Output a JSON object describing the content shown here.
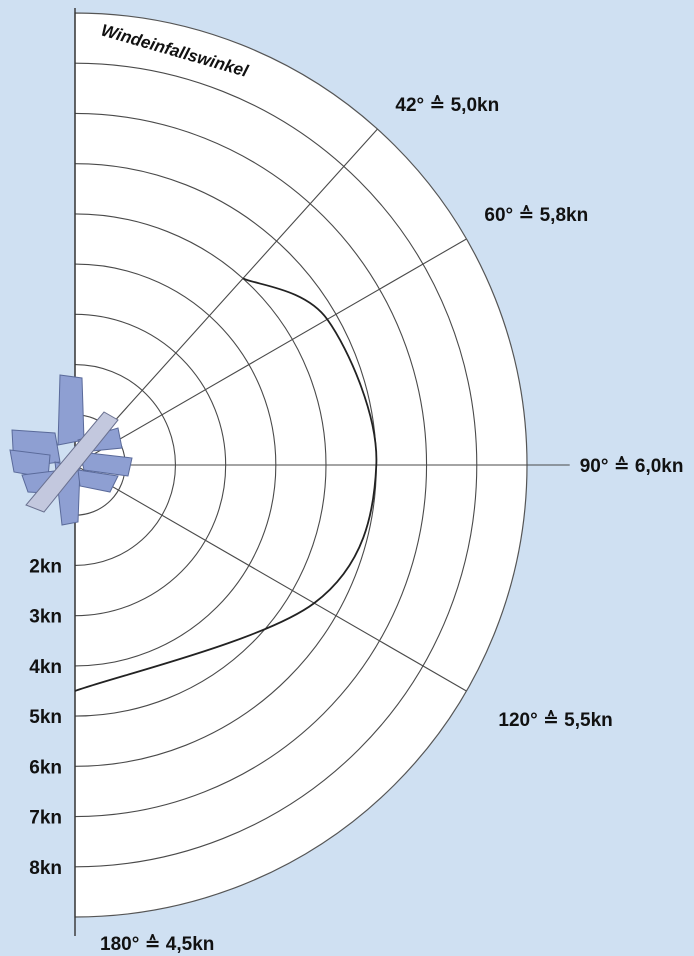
{
  "chart_data": {
    "type": "polar-line",
    "title": "Windeinfallswinkel",
    "radial_unit": "kn",
    "radial_ticks": [
      {
        "value": 2,
        "label": "2kn"
      },
      {
        "value": 3,
        "label": "3kn"
      },
      {
        "value": 4,
        "label": "4kn"
      },
      {
        "value": 5,
        "label": "5kn"
      },
      {
        "value": 6,
        "label": "6kn"
      },
      {
        "value": 7,
        "label": "7kn"
      },
      {
        "value": 8,
        "label": "8kn"
      }
    ],
    "radial_max": 9,
    "angle_range": [
      0,
      180
    ],
    "angle_spokes": [
      {
        "angle": 42,
        "label": "42° ≙ 5,0kn"
      },
      {
        "angle": 60,
        "label": "60° ≙ 5,8kn"
      },
      {
        "angle": 90,
        "label": "90° ≙ 6,0kn"
      },
      {
        "angle": 120,
        "label": "120° ≙ 5,5kn"
      },
      {
        "angle": 180,
        "label": "180° ≙ 4,5kn"
      }
    ],
    "series": [
      {
        "points": [
          {
            "angle": 42,
            "speed": 5.0
          },
          {
            "angle": 60,
            "speed": 5.8
          },
          {
            "angle": 90,
            "speed": 6.0
          },
          {
            "angle": 120,
            "speed": 5.5
          },
          {
            "angle": 180,
            "speed": 4.5
          }
        ],
        "color": "#222222"
      }
    ],
    "colors": {
      "background": "#cfe0f2",
      "plot_area": "#ffffff",
      "grid": "#4a4a4a",
      "boat_sails": "#8e9fd2",
      "boat_hull": "#c3c8de"
    },
    "grid": true,
    "legend": "none"
  }
}
